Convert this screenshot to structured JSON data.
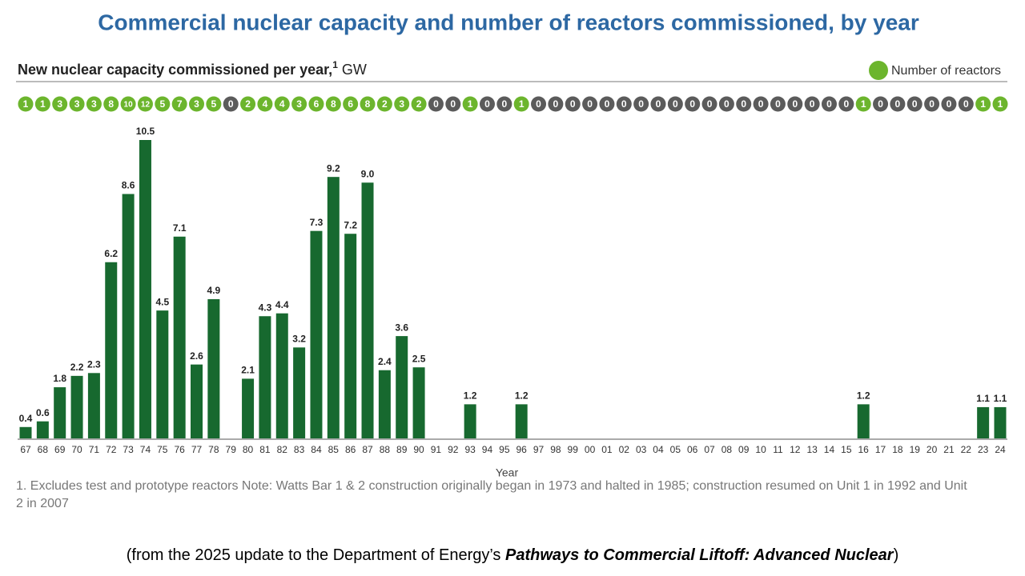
{
  "chart_data": {
    "type": "bar",
    "title": "Commercial nuclear capacity and number of reactors commissioned, by year",
    "subtitle": {
      "text": "New nuclear capacity commissioned per year,",
      "sup": "1",
      "unit": "GW"
    },
    "legend": {
      "label": "Number of reactors",
      "color": "#6cb52d"
    },
    "xlabel": "Year",
    "categories": [
      "67",
      "68",
      "69",
      "70",
      "71",
      "72",
      "73",
      "74",
      "75",
      "76",
      "77",
      "78",
      "79",
      "80",
      "81",
      "82",
      "83",
      "84",
      "85",
      "86",
      "87",
      "88",
      "89",
      "90",
      "91",
      "92",
      "93",
      "94",
      "95",
      "96",
      "97",
      "98",
      "99",
      "00",
      "01",
      "02",
      "03",
      "04",
      "05",
      "06",
      "07",
      "08",
      "09",
      "10",
      "11",
      "12",
      "13",
      "14",
      "15",
      "16",
      "17",
      "18",
      "19",
      "20",
      "21",
      "22",
      "23",
      "24"
    ],
    "values": [
      0.4,
      0.6,
      1.8,
      2.2,
      2.3,
      6.2,
      8.6,
      10.5,
      4.5,
      7.1,
      2.6,
      4.9,
      0,
      2.1,
      4.3,
      4.4,
      3.2,
      7.3,
      9.2,
      7.2,
      9.0,
      2.4,
      3.6,
      2.5,
      0,
      0,
      1.2,
      0,
      0,
      1.2,
      0,
      0,
      0,
      0,
      0,
      0,
      0,
      0,
      0,
      0,
      0,
      0,
      0,
      0,
      0,
      0,
      0,
      0,
      0,
      1.2,
      0,
      0,
      0,
      0,
      0,
      0,
      1.1,
      1.1
    ],
    "value_labels": [
      "0.4",
      "0.6",
      "1.8",
      "2.2",
      "2.3",
      "6.2",
      "8.6",
      "10.5",
      "4.5",
      "7.1",
      "2.6",
      "4.9",
      null,
      "2.1",
      "4.3",
      "4.4",
      "3.2",
      "7.3",
      "9.2",
      "7.2",
      "9.0",
      "2.4",
      "3.6",
      "2.5",
      null,
      null,
      "1.2",
      null,
      null,
      "1.2",
      null,
      null,
      null,
      null,
      null,
      null,
      null,
      null,
      null,
      null,
      null,
      null,
      null,
      null,
      null,
      null,
      null,
      null,
      null,
      "1.2",
      null,
      null,
      null,
      null,
      null,
      null,
      "1.1",
      "1.1"
    ],
    "color": "#17692f",
    "ylim": [
      0,
      10.5
    ],
    "reactors": {
      "values": [
        1,
        1,
        3,
        3,
        3,
        8,
        10,
        12,
        5,
        7,
        3,
        5,
        0,
        2,
        4,
        4,
        3,
        6,
        8,
        6,
        8,
        2,
        3,
        2,
        0,
        0,
        1,
        0,
        0,
        1,
        0,
        0,
        0,
        0,
        0,
        0,
        0,
        0,
        0,
        0,
        0,
        0,
        0,
        0,
        0,
        0,
        0,
        0,
        0,
        1,
        0,
        0,
        0,
        0,
        0,
        0,
        1,
        1
      ],
      "color": "#6cb52d",
      "zero_color": "#5b5b5b"
    }
  },
  "footnote": "1. Excludes test and prototype reactors Note: Watts Bar 1 & 2 construction originally began in 1973 and halted in 1985; construction resumed on Unit 1 in 1992 and Unit 2 in 2007",
  "source": {
    "before": "(from the 2025 update to the Department of Energy’s ",
    "emphasis": "Pathways to Commercial Liftoff: Advanced Nuclear",
    "after": ")"
  }
}
